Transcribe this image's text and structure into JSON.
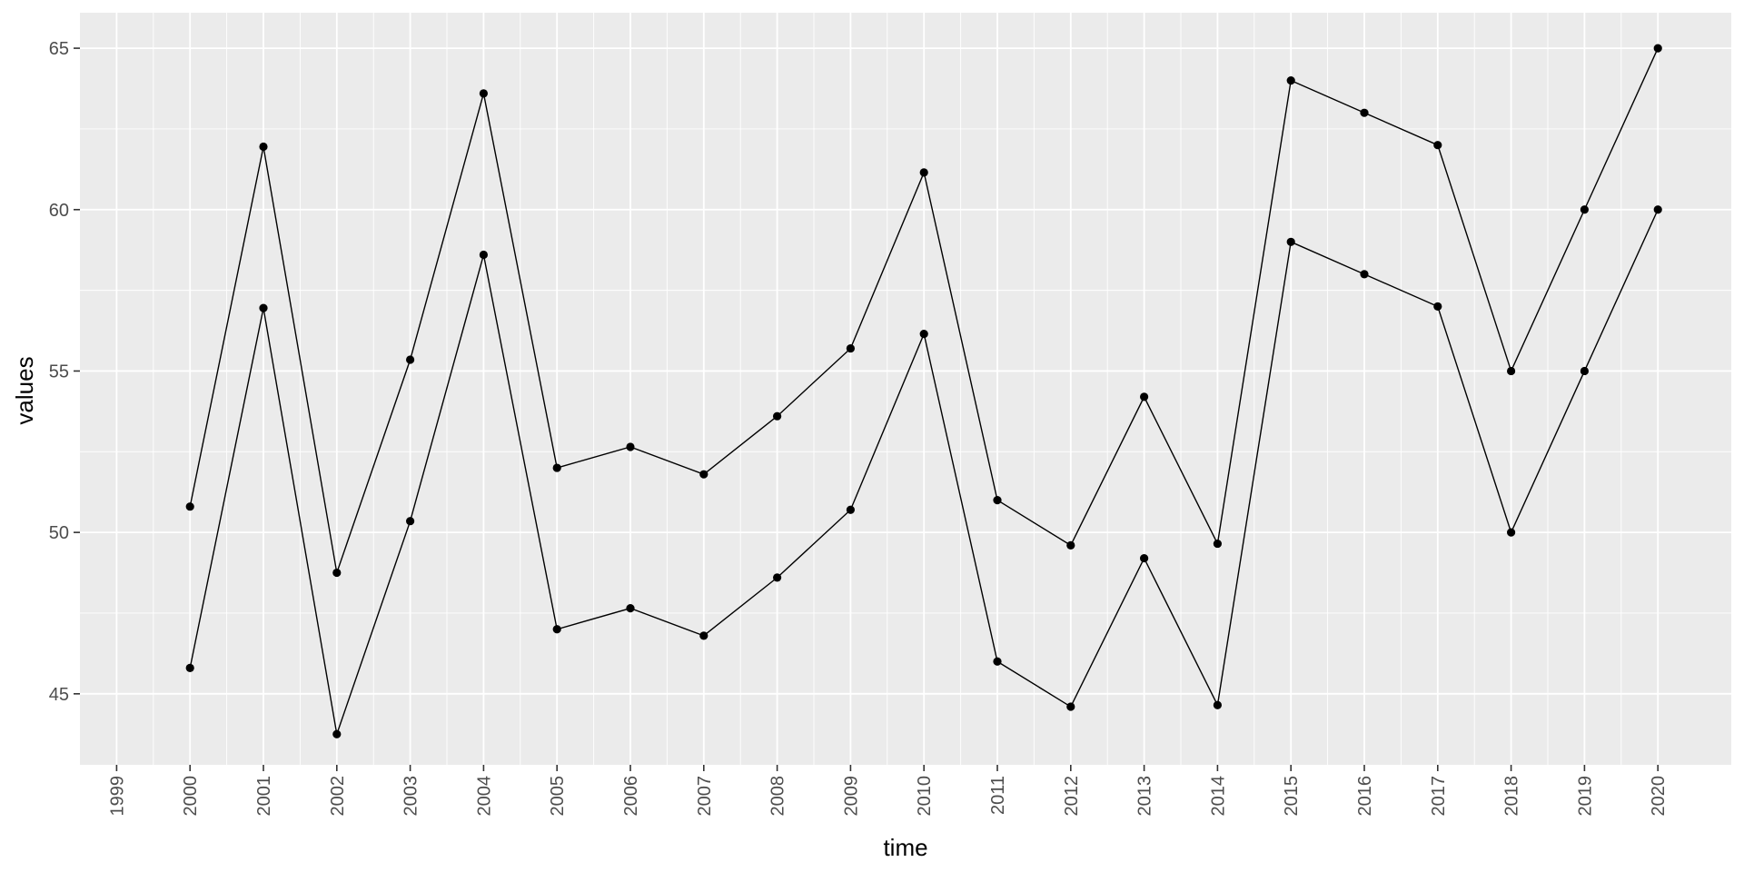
{
  "chart_data": {
    "type": "line",
    "title": "",
    "xlabel": "time",
    "ylabel": "values",
    "x": [
      2000,
      2001,
      2002,
      2003,
      2004,
      2005,
      2006,
      2007,
      2008,
      2009,
      2010,
      2011,
      2012,
      2013,
      2014,
      2015,
      2016,
      2017,
      2018,
      2019,
      2020
    ],
    "series": [
      {
        "values": [
          50.8,
          61.95,
          48.75,
          55.35,
          63.6,
          52.0,
          52.65,
          51.8,
          53.6,
          55.7,
          61.15,
          51.0,
          49.6,
          54.2,
          49.65,
          64.0,
          63.0,
          62.0,
          55.0,
          60.0,
          65.0
        ]
      },
      {
        "values": [
          45.8,
          56.95,
          43.75,
          50.35,
          58.6,
          47.0,
          47.65,
          46.8,
          48.6,
          50.7,
          56.15,
          46.0,
          44.6,
          49.2,
          44.65,
          59.0,
          58.0,
          57.0,
          50.0,
          55.0,
          60.0
        ]
      }
    ],
    "xlim": [
      1998.5,
      2021.0
    ],
    "ylim": [
      42.8,
      66.1
    ],
    "x_ticks": [
      1999,
      2000,
      2001,
      2002,
      2003,
      2004,
      2005,
      2006,
      2007,
      2008,
      2009,
      2010,
      2011,
      2012,
      2013,
      2014,
      2015,
      2016,
      2017,
      2018,
      2019,
      2020
    ],
    "y_ticks": [
      45,
      50,
      55,
      60,
      65
    ],
    "grid": true,
    "panel_background": "#ebebeb",
    "grid_color": "#ffffff",
    "line_color": "#000000",
    "point_color": "#000000",
    "tick_label_color": "#4d4d4d",
    "axis_tick_color": "#333333"
  }
}
